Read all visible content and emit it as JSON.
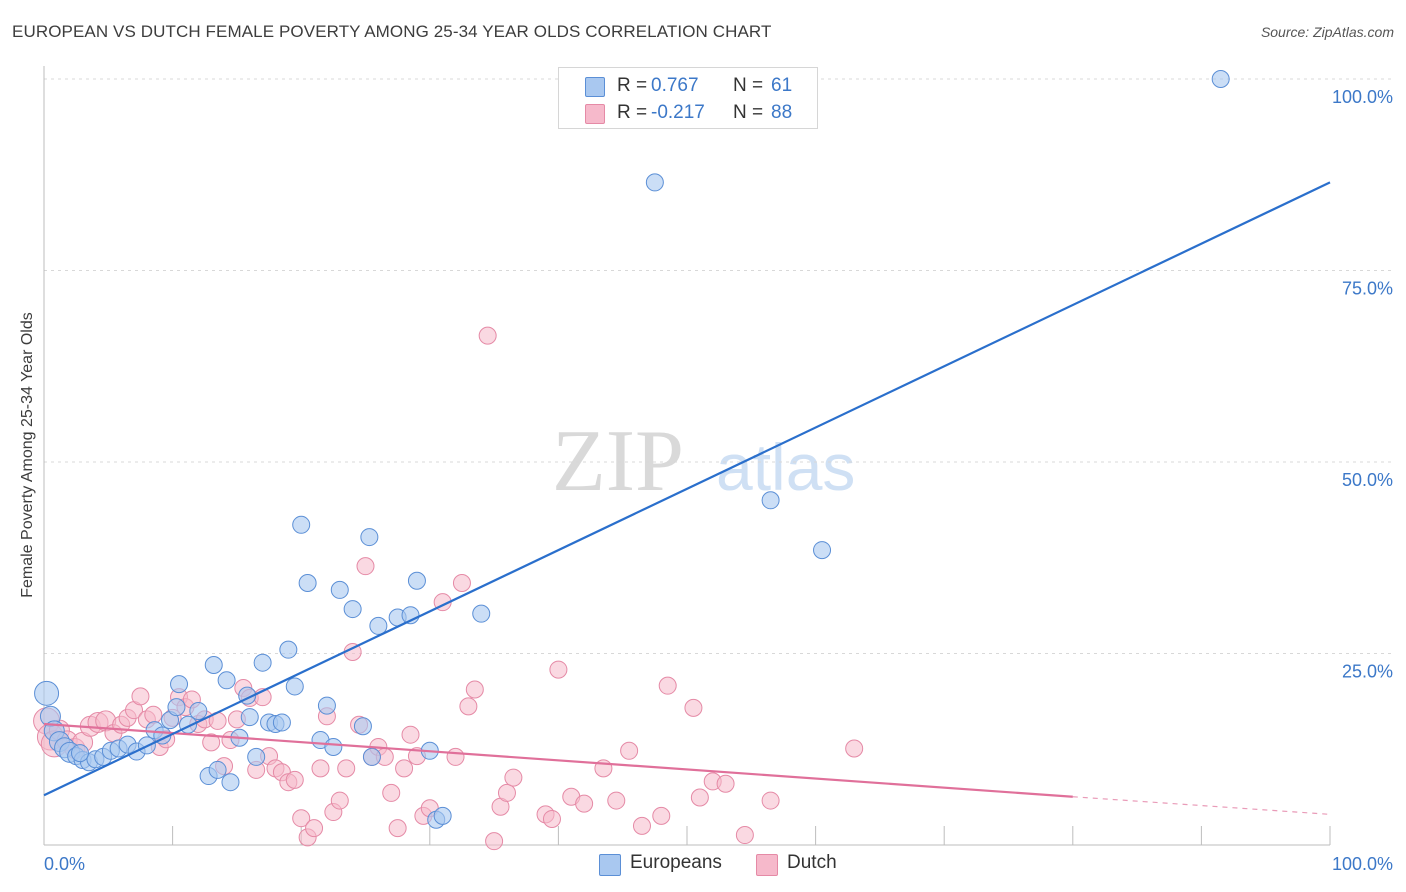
{
  "header": {
    "title": "EUROPEAN VS DUTCH FEMALE POVERTY AMONG 25-34 YEAR OLDS CORRELATION CHART",
    "source": "Source: ZipAtlas.com"
  },
  "watermark": {
    "zip": "ZIP",
    "atlas": "atlas"
  },
  "legend": {
    "europeans": {
      "r_label": "R =",
      "r_value": "0.767",
      "n_label": "N =",
      "n_value": "61"
    },
    "dutch": {
      "r_label": "R =",
      "r_value": "-0.217",
      "n_label": "N =",
      "n_value": "88"
    }
  },
  "chart_data": {
    "type": "scatter",
    "title": "EUROPEAN VS DUTCH FEMALE POVERTY AMONG 25-34 YEAR OLDS CORRELATION CHART",
    "xlabel": "",
    "ylabel": "Female Poverty Among 25-34 Year Olds",
    "xlim": [
      0,
      100
    ],
    "ylim": [
      0,
      100
    ],
    "x_tick_labels": [
      "0.0%",
      "100.0%"
    ],
    "y_tick_labels": [
      "25.0%",
      "50.0%",
      "75.0%",
      "100.0%"
    ],
    "y_ticks": [
      25,
      50,
      75,
      100
    ],
    "grid": true,
    "legend_position": "top-center",
    "colors": {
      "europeans_fill": "#a9c8f0",
      "europeans_stroke": "#5b8fd6",
      "europeans_line": "#2a6fcc",
      "dutch_fill": "#f6b9cb",
      "dutch_stroke": "#e58aa6",
      "dutch_line": "#e0709a",
      "axis_text": "#3c78c8"
    },
    "series": [
      {
        "name": "Europeans",
        "r": 0.767,
        "n": 61,
        "trend": {
          "x": [
            0,
            100
          ],
          "y": [
            6.5,
            86.5
          ]
        },
        "points": [
          [
            0.2,
            19.8
          ],
          [
            0.5,
            16.8
          ],
          [
            0.8,
            14.9
          ],
          [
            1.2,
            13.5
          ],
          [
            1.6,
            12.7
          ],
          [
            2.0,
            12.1
          ],
          [
            2.5,
            11.6
          ],
          [
            3.0,
            11.1
          ],
          [
            3.5,
            10.8
          ],
          [
            4.0,
            11.2
          ],
          [
            4.6,
            11.5
          ],
          [
            5.2,
            12.3
          ],
          [
            5.8,
            12.6
          ],
          [
            6.5,
            13.1
          ],
          [
            7.2,
            12.2
          ],
          [
            8.0,
            13.0
          ],
          [
            8.6,
            15.0
          ],
          [
            9.2,
            14.3
          ],
          [
            9.8,
            16.3
          ],
          [
            10.3,
            18.0
          ],
          [
            10.5,
            21.0
          ],
          [
            11.2,
            15.7
          ],
          [
            12.0,
            17.5
          ],
          [
            12.8,
            9.0
          ],
          [
            13.2,
            23.5
          ],
          [
            13.5,
            9.8
          ],
          [
            14.2,
            21.5
          ],
          [
            14.5,
            8.2
          ],
          [
            15.2,
            14.0
          ],
          [
            15.8,
            19.5
          ],
          [
            16.0,
            16.7
          ],
          [
            16.5,
            11.5
          ],
          [
            17.0,
            23.8
          ],
          [
            17.5,
            16.0
          ],
          [
            18.0,
            15.8
          ],
          [
            18.5,
            16.0
          ],
          [
            19.0,
            25.5
          ],
          [
            19.5,
            20.7
          ],
          [
            20.0,
            41.8
          ],
          [
            20.5,
            34.2
          ],
          [
            21.5,
            13.7
          ],
          [
            22.0,
            18.2
          ],
          [
            22.5,
            12.8
          ],
          [
            23.0,
            33.3
          ],
          [
            24.0,
            30.8
          ],
          [
            24.8,
            15.5
          ],
          [
            25.3,
            40.2
          ],
          [
            25.5,
            11.5
          ],
          [
            26.0,
            28.6
          ],
          [
            27.5,
            29.7
          ],
          [
            28.5,
            30.0
          ],
          [
            29.0,
            34.5
          ],
          [
            30.0,
            12.3
          ],
          [
            30.5,
            3.3
          ],
          [
            31.0,
            3.8
          ],
          [
            34.0,
            30.2
          ],
          [
            47.5,
            86.5
          ],
          [
            56.5,
            45.0
          ],
          [
            60.5,
            38.5
          ],
          [
            91.5,
            100.0
          ],
          [
            2.8,
            12.0
          ]
        ]
      },
      {
        "name": "Dutch",
        "r": -0.217,
        "n": 88,
        "trend": {
          "x": [
            0,
            80
          ],
          "y": [
            15.8,
            6.3
          ]
        },
        "trend_dashed": {
          "x": [
            80,
            100
          ],
          "y": [
            6.3,
            4.0
          ]
        },
        "points": [
          [
            0.2,
            16.2
          ],
          [
            0.5,
            14.1
          ],
          [
            0.8,
            13.2
          ],
          [
            1.2,
            15.0
          ],
          [
            1.8,
            13.6
          ],
          [
            2.4,
            12.6
          ],
          [
            3.0,
            13.4
          ],
          [
            3.6,
            15.5
          ],
          [
            4.2,
            16.0
          ],
          [
            4.8,
            16.2
          ],
          [
            5.4,
            14.6
          ],
          [
            6.0,
            15.7
          ],
          [
            6.5,
            16.6
          ],
          [
            7.0,
            17.6
          ],
          [
            7.5,
            19.4
          ],
          [
            8.0,
            16.4
          ],
          [
            8.5,
            17.0
          ],
          [
            9.0,
            12.8
          ],
          [
            9.5,
            13.8
          ],
          [
            10.0,
            16.6
          ],
          [
            10.5,
            19.3
          ],
          [
            11.0,
            18.0
          ],
          [
            11.5,
            19.0
          ],
          [
            12.0,
            15.8
          ],
          [
            12.5,
            16.4
          ],
          [
            13.0,
            13.4
          ],
          [
            13.5,
            16.2
          ],
          [
            14.0,
            10.3
          ],
          [
            14.5,
            13.7
          ],
          [
            15.0,
            16.4
          ],
          [
            15.5,
            20.5
          ],
          [
            16.0,
            19.2
          ],
          [
            16.5,
            9.8
          ],
          [
            17.0,
            19.3
          ],
          [
            17.5,
            11.6
          ],
          [
            18.0,
            10.0
          ],
          [
            18.5,
            9.5
          ],
          [
            19.0,
            8.2
          ],
          [
            19.5,
            8.5
          ],
          [
            20.0,
            3.5
          ],
          [
            20.5,
            1.0
          ],
          [
            21.0,
            2.2
          ],
          [
            21.5,
            10.0
          ],
          [
            22.0,
            16.8
          ],
          [
            22.5,
            4.3
          ],
          [
            23.0,
            5.8
          ],
          [
            23.5,
            10.0
          ],
          [
            24.0,
            25.2
          ],
          [
            24.5,
            15.7
          ],
          [
            25.0,
            36.4
          ],
          [
            25.5,
            11.5
          ],
          [
            26.0,
            12.8
          ],
          [
            26.5,
            11.5
          ],
          [
            27.0,
            6.8
          ],
          [
            27.5,
            2.2
          ],
          [
            28.0,
            10.0
          ],
          [
            28.5,
            14.4
          ],
          [
            29.0,
            11.6
          ],
          [
            29.5,
            3.8
          ],
          [
            30.0,
            4.8
          ],
          [
            31.0,
            31.7
          ],
          [
            32.0,
            11.5
          ],
          [
            32.5,
            34.2
          ],
          [
            33.0,
            18.1
          ],
          [
            33.5,
            20.3
          ],
          [
            34.5,
            66.5
          ],
          [
            35.0,
            0.5
          ],
          [
            35.5,
            5.0
          ],
          [
            36.0,
            6.8
          ],
          [
            36.5,
            8.8
          ],
          [
            39.0,
            4.0
          ],
          [
            39.5,
            3.4
          ],
          [
            40.0,
            22.9
          ],
          [
            41.0,
            6.3
          ],
          [
            42.0,
            5.4
          ],
          [
            43.5,
            10.0
          ],
          [
            44.5,
            5.8
          ],
          [
            45.5,
            12.3
          ],
          [
            46.5,
            2.5
          ],
          [
            48.0,
            3.8
          ],
          [
            48.5,
            20.8
          ],
          [
            50.5,
            17.9
          ],
          [
            51.0,
            6.2
          ],
          [
            52.0,
            8.3
          ],
          [
            53.0,
            8.0
          ],
          [
            54.5,
            1.3
          ],
          [
            56.5,
            5.8
          ],
          [
            63.0,
            12.6
          ]
        ]
      }
    ]
  },
  "bottom_legend": {
    "europeans": "Europeans",
    "dutch": "Dutch"
  }
}
